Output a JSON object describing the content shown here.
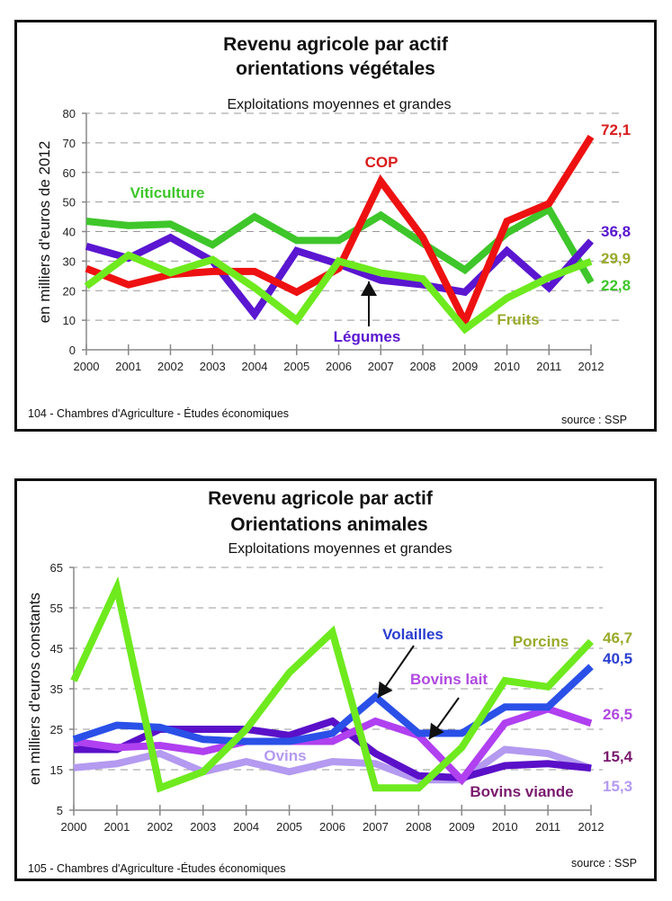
{
  "chart_data": [
    {
      "type": "line",
      "title": "Revenu agricole par actif",
      "title_line2": "orientations végétales",
      "subtitle": "Exploitations moyennes et grandes",
      "xlabel": "",
      "ylabel": "en milliers d'euros de 2012",
      "x": [
        "2000",
        "2001",
        "2002",
        "2003",
        "2004",
        "2005",
        "2006",
        "2007",
        "2008",
        "2009",
        "2010",
        "2011",
        "2012"
      ],
      "ylim": [
        0,
        80
      ],
      "yticks": [
        0,
        10,
        20,
        30,
        40,
        50,
        60,
        70,
        80
      ],
      "grid": true,
      "footer_left": "104 - Chambres d'Agriculture - Études économiques",
      "footer_right": "source : SSP",
      "series": [
        {
          "name": "Viticulture",
          "color": "#3ec62a",
          "label_color": "#3ec62a",
          "end_label": "22,8",
          "values": [
            43.5,
            42,
            42.5,
            35.5,
            45,
            37,
            37,
            45.5,
            36,
            27,
            39.5,
            47.5,
            22.8
          ]
        },
        {
          "name": "Légumes",
          "color": "#5a16d0",
          "label_color": "#5a16d0",
          "end_label": "36,8",
          "values": [
            35,
            31,
            38,
            30,
            12,
            33.5,
            29,
            23.5,
            22,
            19.5,
            33.5,
            21,
            36.8
          ]
        },
        {
          "name": "COP",
          "color": "#ee1111",
          "label_color": "#d91c1c",
          "end_label": "72,1",
          "values": [
            27.5,
            22,
            25.5,
            26.5,
            26.5,
            19.5,
            27.5,
            57,
            38,
            9.5,
            43.5,
            49.5,
            72.1
          ]
        },
        {
          "name": "Fruits",
          "color": "#6eea1e",
          "label_color": "#9aaa2a",
          "end_label": "29,9",
          "values": [
            21.5,
            32,
            26,
            30.5,
            21,
            10,
            30,
            26,
            24,
            7,
            17.5,
            24.5,
            29.9
          ]
        }
      ],
      "annotations": [
        {
          "text": "Viticulture",
          "series": "Viticulture"
        },
        {
          "text": "COP",
          "series": "COP"
        },
        {
          "text": "Légumes",
          "series": "Légumes",
          "arrow": true
        },
        {
          "text": "Fruits",
          "series": "Fruits"
        }
      ]
    },
    {
      "type": "line",
      "title": "Revenu agricole par actif",
      "title_line2": "Orientations animales",
      "subtitle": "Exploitations moyennes et grandes",
      "xlabel": "",
      "ylabel": "en milliers d'euros constants",
      "x": [
        "2000",
        "2001",
        "2002",
        "2003",
        "2004",
        "2005",
        "2006",
        "2007",
        "2008",
        "2009",
        "2010",
        "2011",
        "2012"
      ],
      "ylim": [
        5,
        65
      ],
      "yticks": [
        5,
        15,
        25,
        35,
        45,
        55,
        65
      ],
      "grid": true,
      "footer_left": "105 - Chambres d'Agriculture  -Études économiques",
      "footer_right": "source : SSP",
      "series": [
        {
          "name": "Ovins",
          "color": "#b49af0",
          "label_color": "#b49af0",
          "end_label": "15,3",
          "values": [
            15.5,
            16.5,
            19,
            14.5,
            17,
            14.5,
            17,
            16.5,
            12.5,
            12.5,
            20,
            19,
            15.3
          ]
        },
        {
          "name": "Bovins viande",
          "color": "#5a10c8",
          "label_color": "#7a1a6e",
          "end_label": "15,4",
          "values": [
            20,
            20,
            25,
            25,
            25,
            23.5,
            27,
            19,
            13.5,
            13,
            16,
            16.5,
            15.4
          ]
        },
        {
          "name": "Bovins lait",
          "color": "#b040f0",
          "label_color": "#b04ae0",
          "end_label": "26,5",
          "values": [
            22,
            20.5,
            21,
            19.5,
            22,
            22,
            22,
            27,
            23.5,
            12.5,
            26.5,
            30,
            26.5
          ]
        },
        {
          "name": "Volailles",
          "color": "#2a50e8",
          "label_color": "#2a3ed0",
          "end_label": "40,5",
          "values": [
            22.5,
            26,
            25.5,
            22.5,
            22,
            22,
            24,
            33,
            24,
            24,
            30.5,
            30.5,
            40.5
          ]
        },
        {
          "name": "Porcins",
          "color": "#6eea1e",
          "label_color": "#9aaa2a",
          "end_label": "46,7",
          "values": [
            37,
            60,
            10.5,
            14.5,
            25,
            39,
            49,
            10.5,
            10.5,
            20.5,
            37,
            35.5,
            46.7
          ]
        }
      ],
      "annotations": [
        {
          "text": "Volailles",
          "series": "Volailles",
          "arrow": true
        },
        {
          "text": "Porcins",
          "series": "Porcins"
        },
        {
          "text": "Bovins lait",
          "series": "Bovins lait",
          "arrow": true
        },
        {
          "text": "Ovins",
          "series": "Ovins"
        },
        {
          "text": "Bovins viande",
          "series": "Bovins viande"
        }
      ]
    }
  ]
}
